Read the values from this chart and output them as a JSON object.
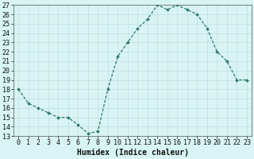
{
  "x": [
    0,
    1,
    2,
    3,
    4,
    5,
    6,
    7,
    8,
    9,
    10,
    11,
    12,
    13,
    14,
    15,
    16,
    17,
    18,
    19,
    20,
    21,
    22,
    23
  ],
  "y": [
    18,
    16.5,
    16,
    15.5,
    15,
    15,
    14.2,
    13.3,
    13.5,
    18,
    21.5,
    23,
    24.5,
    25.5,
    27,
    26.5,
    27,
    26.5,
    26,
    24.5,
    22,
    21,
    19,
    19
  ],
  "xlabel": "Humidex (Indice chaleur)",
  "xlim": [
    -0.5,
    23.5
  ],
  "ylim": [
    13,
    27
  ],
  "yticks": [
    13,
    14,
    15,
    16,
    17,
    18,
    19,
    20,
    21,
    22,
    23,
    24,
    25,
    26,
    27
  ],
  "xticks": [
    0,
    1,
    2,
    3,
    4,
    5,
    6,
    7,
    8,
    9,
    10,
    11,
    12,
    13,
    14,
    15,
    16,
    17,
    18,
    19,
    20,
    21,
    22,
    23
  ],
  "xtick_labels": [
    "0",
    "1",
    "2",
    "3",
    "4",
    "5",
    "6",
    "7",
    "8",
    "9",
    "10",
    "11",
    "12",
    "13",
    "14",
    "15",
    "16",
    "17",
    "18",
    "19",
    "20",
    "21",
    "22",
    "23"
  ],
  "line_color": "#2d7a6a",
  "marker_color": "#2d7a6a",
  "bg_color": "#d8f4f4",
  "grid_major_color": "#c0dede",
  "grid_minor_color": "#e0f0f0",
  "spine_color": "#555555",
  "font_color": "#111111",
  "label_fontsize": 7,
  "tick_fontsize": 6
}
